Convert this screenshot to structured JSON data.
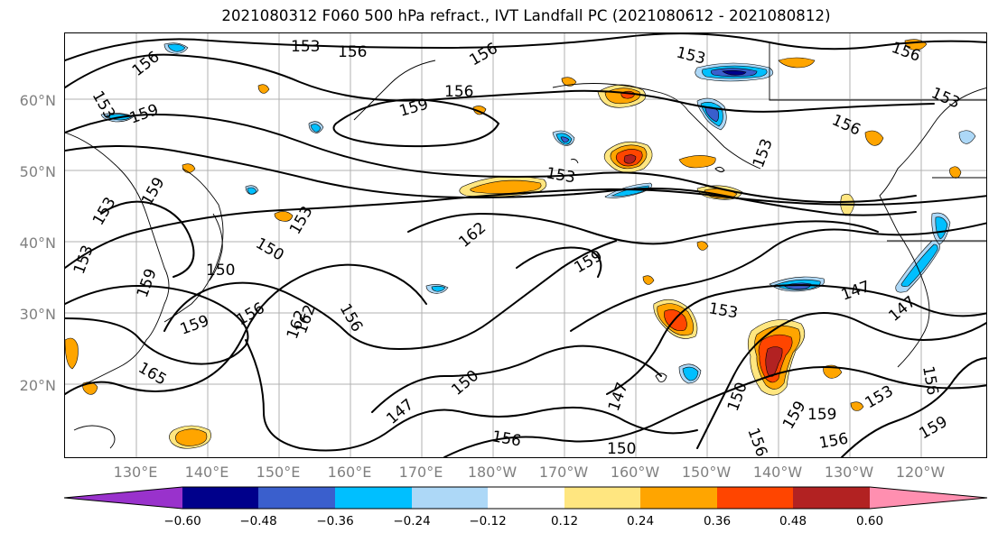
{
  "title": "2021080312 F060 500 hPa refract., IVT Landfall PC (2021080612 - 2021080812)",
  "map": {
    "lat_labels": [
      "60°N",
      "50°N",
      "40°N",
      "30°N",
      "20°N"
    ],
    "lon_labels": [
      "130°E",
      "140°E",
      "150°E",
      "160°E",
      "170°E",
      "180°W",
      "170°W",
      "160°W",
      "150°W",
      "140°W",
      "130°W",
      "120°W"
    ],
    "contour_labels": [
      "153",
      "156",
      "156",
      "156",
      "156",
      "153",
      "153",
      "156",
      "153",
      "156",
      "159",
      "159",
      "153",
      "153",
      "159",
      "153",
      "153",
      "150",
      "162",
      "159",
      "153",
      "150",
      "156",
      "156",
      "159",
      "162",
      "165",
      "147",
      "150",
      "156",
      "147",
      "150",
      "159",
      "156",
      "153",
      "159",
      "156",
      "159",
      "147",
      "147",
      "153",
      "156",
      "162",
      "159",
      "150"
    ],
    "fill_colors": {
      "yellow": "#ffe680",
      "orange": "#ffa500",
      "red_orange": "#ff4500",
      "dark_red": "#b22222",
      "light_blue": "#add8f7",
      "sky_blue": "#00bfff",
      "royal_blue": "#3a5fcd",
      "navy": "#00008b"
    },
    "coastline_color": "#000000",
    "contour_color": "#000000"
  },
  "colorbar": {
    "colors": [
      "#9932cc",
      "#00008b",
      "#3a5fcd",
      "#00bfff",
      "#add8f7",
      "#ffffff",
      "#ffe680",
      "#ffa500",
      "#ff4500",
      "#b22222",
      "#ff8fb0"
    ],
    "tick_labels": [
      "−0.60",
      "−0.48",
      "−0.36",
      "−0.24",
      "−0.12",
      "0.12",
      "0.24",
      "0.36",
      "0.48",
      "0.60"
    ]
  }
}
